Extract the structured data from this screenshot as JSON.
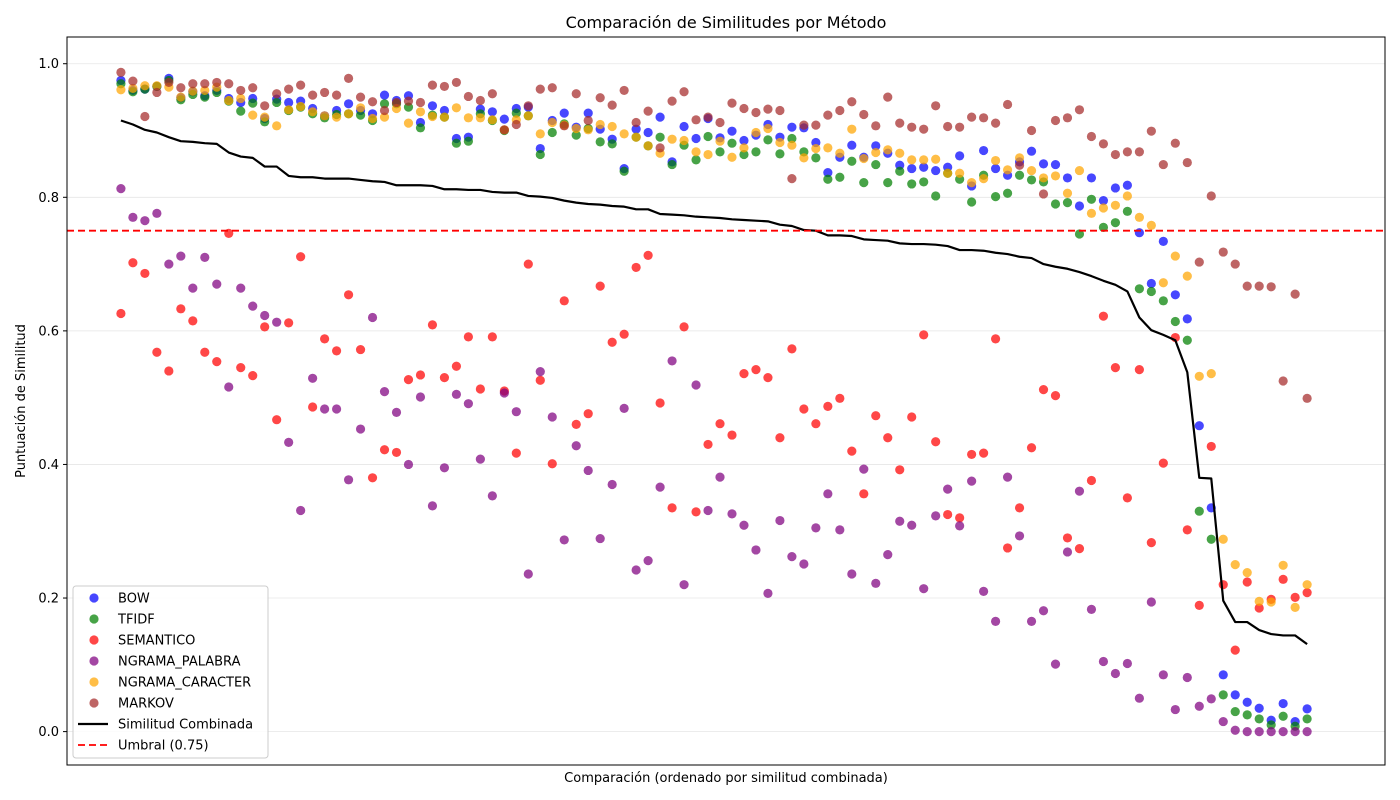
{
  "chart_data": {
    "type": "scatter",
    "title": "Comparación de Similitudes por Método",
    "xlabel": "Comparación (ordenado por similitud combinada)",
    "ylabel": "Puntuación de Similitud",
    "ylim": [
      -0.05,
      1.04
    ],
    "xlim": [
      -4.5,
      105.5
    ],
    "yticks": [
      "0.0",
      "0.2",
      "0.4",
      "0.6",
      "0.8",
      "1.0"
    ],
    "grid": "horizontal",
    "legend_position": "lower-left",
    "threshold": {
      "value": 0.75,
      "label": "Umbral (0.75)",
      "color": "#ff0000"
    },
    "combined": {
      "name": "Similitud Combinada",
      "color": "#000000",
      "values": [
        0.915,
        0.909,
        0.901,
        0.897,
        0.89,
        0.884,
        0.883,
        0.881,
        0.88,
        0.867,
        0.861,
        0.859,
        0.846,
        0.846,
        0.832,
        0.83,
        0.83,
        0.828,
        0.828,
        0.828,
        0.826,
        0.824,
        0.823,
        0.818,
        0.818,
        0.818,
        0.817,
        0.812,
        0.812,
        0.811,
        0.811,
        0.808,
        0.807,
        0.807,
        0.802,
        0.801,
        0.799,
        0.795,
        0.792,
        0.79,
        0.789,
        0.787,
        0.786,
        0.782,
        0.782,
        0.775,
        0.774,
        0.773,
        0.771,
        0.77,
        0.769,
        0.767,
        0.766,
        0.765,
        0.764,
        0.759,
        0.757,
        0.751,
        0.75,
        0.743,
        0.743,
        0.742,
        0.737,
        0.736,
        0.735,
        0.731,
        0.73,
        0.73,
        0.729,
        0.727,
        0.721,
        0.721,
        0.72,
        0.717,
        0.715,
        0.711,
        0.709,
        0.7,
        0.696,
        0.693,
        0.688,
        0.682,
        0.675,
        0.669,
        0.659,
        0.62,
        0.601,
        0.594,
        0.586,
        0.538,
        0.38,
        0.379,
        0.196,
        0.164,
        0.164,
        0.152,
        0.146,
        0.144,
        0.144,
        0.131
      ]
    },
    "series": [
      {
        "name": "BOW",
        "color": "#0000ff",
        "values": [
          0.975,
          0.96,
          0.962,
          0.966,
          0.978,
          0.949,
          0.958,
          0.952,
          0.96,
          0.948,
          0.942,
          0.948,
          0.918,
          0.947,
          0.942,
          0.944,
          0.933,
          0.922,
          0.93,
          0.94,
          0.93,
          0.925,
          0.953,
          0.945,
          0.952,
          0.912,
          0.937,
          0.93,
          0.888,
          0.89,
          0.932,
          0.928,
          0.917,
          0.933,
          0.935,
          0.873,
          0.915,
          0.926,
          0.905,
          0.926,
          0.902,
          0.887,
          0.843,
          0.902,
          0.897,
          0.92,
          0.853,
          0.906,
          0.888,
          0.918,
          0.889,
          0.899,
          0.885,
          0.893,
          0.909,
          0.89,
          0.905,
          0.904,
          0.882,
          0.837,
          0.86,
          0.878,
          0.86,
          0.877,
          0.866,
          0.848,
          0.843,
          0.845,
          0.84,
          0.845,
          0.862,
          0.817,
          0.87,
          0.843,
          0.833,
          0.853,
          0.869,
          0.85,
          0.849,
          0.829,
          0.787,
          0.829,
          0.795,
          0.814,
          0.818,
          0.747,
          0.671,
          0.734,
          0.654,
          0.618,
          0.458,
          0.335,
          0.085,
          0.055,
          0.044,
          0.035,
          0.017,
          0.042,
          0.015,
          0.034
        ]
      },
      {
        "name": "TFIDF",
        "color": "#008000",
        "values": [
          0.97,
          0.958,
          0.962,
          0.966,
          0.975,
          0.946,
          0.954,
          0.95,
          0.957,
          0.944,
          0.929,
          0.941,
          0.913,
          0.942,
          0.93,
          0.935,
          0.925,
          0.919,
          0.924,
          0.925,
          0.923,
          0.915,
          0.94,
          0.94,
          0.935,
          0.904,
          0.923,
          0.92,
          0.881,
          0.884,
          0.925,
          0.915,
          0.9,
          0.926,
          0.922,
          0.864,
          0.897,
          0.91,
          0.893,
          0.903,
          0.883,
          0.88,
          0.839,
          0.89,
          0.877,
          0.89,
          0.849,
          0.878,
          0.856,
          0.891,
          0.868,
          0.881,
          0.864,
          0.868,
          0.886,
          0.865,
          0.888,
          0.868,
          0.859,
          0.827,
          0.83,
          0.854,
          0.822,
          0.849,
          0.822,
          0.839,
          0.82,
          0.823,
          0.802,
          0.836,
          0.827,
          0.793,
          0.833,
          0.801,
          0.806,
          0.833,
          0.826,
          0.823,
          0.79,
          0.792,
          0.745,
          0.797,
          0.755,
          0.762,
          0.779,
          0.663,
          0.659,
          0.645,
          0.614,
          0.586,
          0.33,
          0.288,
          0.055,
          0.03,
          0.025,
          0.019,
          0.01,
          0.023,
          0.008,
          0.019
        ]
      },
      {
        "name": "SEMANTICO",
        "color": "#ff0000",
        "values": [
          0.626,
          0.702,
          0.686,
          0.568,
          0.54,
          0.633,
          0.615,
          0.568,
          0.554,
          0.746,
          0.545,
          0.533,
          0.606,
          0.467,
          0.612,
          0.711,
          0.486,
          0.588,
          0.57,
          0.654,
          0.572,
          0.38,
          0.422,
          0.418,
          0.527,
          0.534,
          0.609,
          0.53,
          0.547,
          0.591,
          0.513,
          0.591,
          0.51,
          0.417,
          0.7,
          0.526,
          0.401,
          0.645,
          0.46,
          0.476,
          0.667,
          0.583,
          0.595,
          0.695,
          0.713,
          0.492,
          0.335,
          0.606,
          0.329,
          0.43,
          0.461,
          0.444,
          0.536,
          0.542,
          0.53,
          0.44,
          0.573,
          0.483,
          0.461,
          0.487,
          0.499,
          0.42,
          0.356,
          0.473,
          0.44,
          0.392,
          0.471,
          0.594,
          0.434,
          0.325,
          0.32,
          0.415,
          0.417,
          0.588,
          0.275,
          0.335,
          0.425,
          0.512,
          0.503,
          0.29,
          0.274,
          0.376,
          0.622,
          0.545,
          0.35,
          0.542,
          0.283,
          0.402,
          0.59,
          0.302,
          0.189,
          0.427,
          0.22,
          0.122,
          0.224,
          0.185,
          0.198,
          0.228,
          0.201,
          0.208
        ]
      },
      {
        "name": "NGRAMA_PALABRA",
        "color": "#800080",
        "values": [
          0.813,
          0.77,
          0.765,
          0.776,
          0.7,
          0.712,
          0.664,
          0.71,
          0.67,
          0.516,
          0.664,
          0.637,
          0.623,
          0.613,
          0.433,
          0.331,
          0.529,
          0.483,
          0.483,
          0.377,
          0.453,
          0.62,
          0.509,
          0.478,
          0.4,
          0.501,
          0.338,
          0.395,
          0.505,
          0.491,
          0.408,
          0.353,
          0.507,
          0.479,
          0.236,
          0.539,
          0.471,
          0.287,
          0.428,
          0.391,
          0.289,
          0.37,
          0.484,
          0.242,
          0.256,
          0.366,
          0.555,
          0.22,
          0.519,
          0.331,
          0.381,
          0.326,
          0.309,
          0.272,
          0.207,
          0.316,
          0.262,
          0.251,
          0.305,
          0.356,
          0.302,
          0.236,
          0.393,
          0.222,
          0.265,
          0.315,
          0.309,
          0.214,
          0.323,
          0.363,
          0.308,
          0.375,
          0.21,
          0.165,
          0.381,
          0.293,
          0.165,
          0.181,
          0.101,
          0.269,
          0.36,
          0.183,
          0.105,
          0.087,
          0.102,
          0.05,
          0.194,
          0.085,
          0.033,
          0.081,
          0.038,
          0.049,
          0.015,
          0.002,
          0.0,
          0.0,
          0.0,
          0.0,
          0.0,
          0.0
        ]
      },
      {
        "name": "NGRAMA_CARACTER",
        "color": "#ffa500",
        "values": [
          0.961,
          0.963,
          0.967,
          0.967,
          0.965,
          0.95,
          0.959,
          0.96,
          0.965,
          0.945,
          0.948,
          0.923,
          0.92,
          0.907,
          0.931,
          0.936,
          0.928,
          0.922,
          0.92,
          0.925,
          0.934,
          0.918,
          0.92,
          0.933,
          0.911,
          0.928,
          0.921,
          0.92,
          0.934,
          0.919,
          0.919,
          0.916,
          0.901,
          0.916,
          0.922,
          0.895,
          0.912,
          0.908,
          0.903,
          0.901,
          0.909,
          0.906,
          0.895,
          0.89,
          0.877,
          0.866,
          0.887,
          0.885,
          0.868,
          0.864,
          0.884,
          0.86,
          0.874,
          0.897,
          0.903,
          0.882,
          0.878,
          0.859,
          0.873,
          0.874,
          0.866,
          0.902,
          0.858,
          0.867,
          0.871,
          0.866,
          0.856,
          0.856,
          0.857,
          0.836,
          0.836,
          0.822,
          0.828,
          0.855,
          0.841,
          0.859,
          0.84,
          0.829,
          0.832,
          0.806,
          0.84,
          0.776,
          0.784,
          0.788,
          0.802,
          0.77,
          0.758,
          0.672,
          0.712,
          0.682,
          0.532,
          0.536,
          0.288,
          0.25,
          0.238,
          0.195,
          0.194,
          0.249,
          0.186,
          0.22
        ]
      },
      {
        "name": "MARKOV",
        "color": "#a52a2a",
        "values": [
          0.987,
          0.974,
          0.921,
          0.957,
          0.972,
          0.964,
          0.97,
          0.97,
          0.972,
          0.97,
          0.96,
          0.964,
          0.937,
          0.955,
          0.962,
          0.968,
          0.953,
          0.957,
          0.953,
          0.978,
          0.95,
          0.943,
          0.93,
          0.942,
          0.944,
          0.942,
          0.968,
          0.966,
          0.972,
          0.951,
          0.945,
          0.955,
          0.901,
          0.909,
          0.937,
          0.962,
          0.964,
          0.907,
          0.955,
          0.915,
          0.949,
          0.938,
          0.96,
          0.912,
          0.929,
          0.874,
          0.944,
          0.958,
          0.916,
          0.92,
          0.912,
          0.941,
          0.933,
          0.927,
          0.932,
          0.93,
          0.828,
          0.908,
          0.908,
          0.923,
          0.93,
          0.943,
          0.924,
          0.907,
          0.95,
          0.911,
          0.905,
          0.902,
          0.937,
          0.906,
          0.905,
          0.92,
          0.919,
          0.911,
          0.939,
          0.848,
          0.9,
          0.805,
          0.915,
          0.919,
          0.931,
          0.891,
          0.88,
          0.864,
          0.868,
          0.868,
          0.899,
          0.849,
          0.881,
          0.852,
          0.703,
          0.802,
          0.718,
          0.7,
          0.667,
          0.667,
          0.666,
          0.525,
          0.655,
          0.499
        ]
      }
    ]
  }
}
